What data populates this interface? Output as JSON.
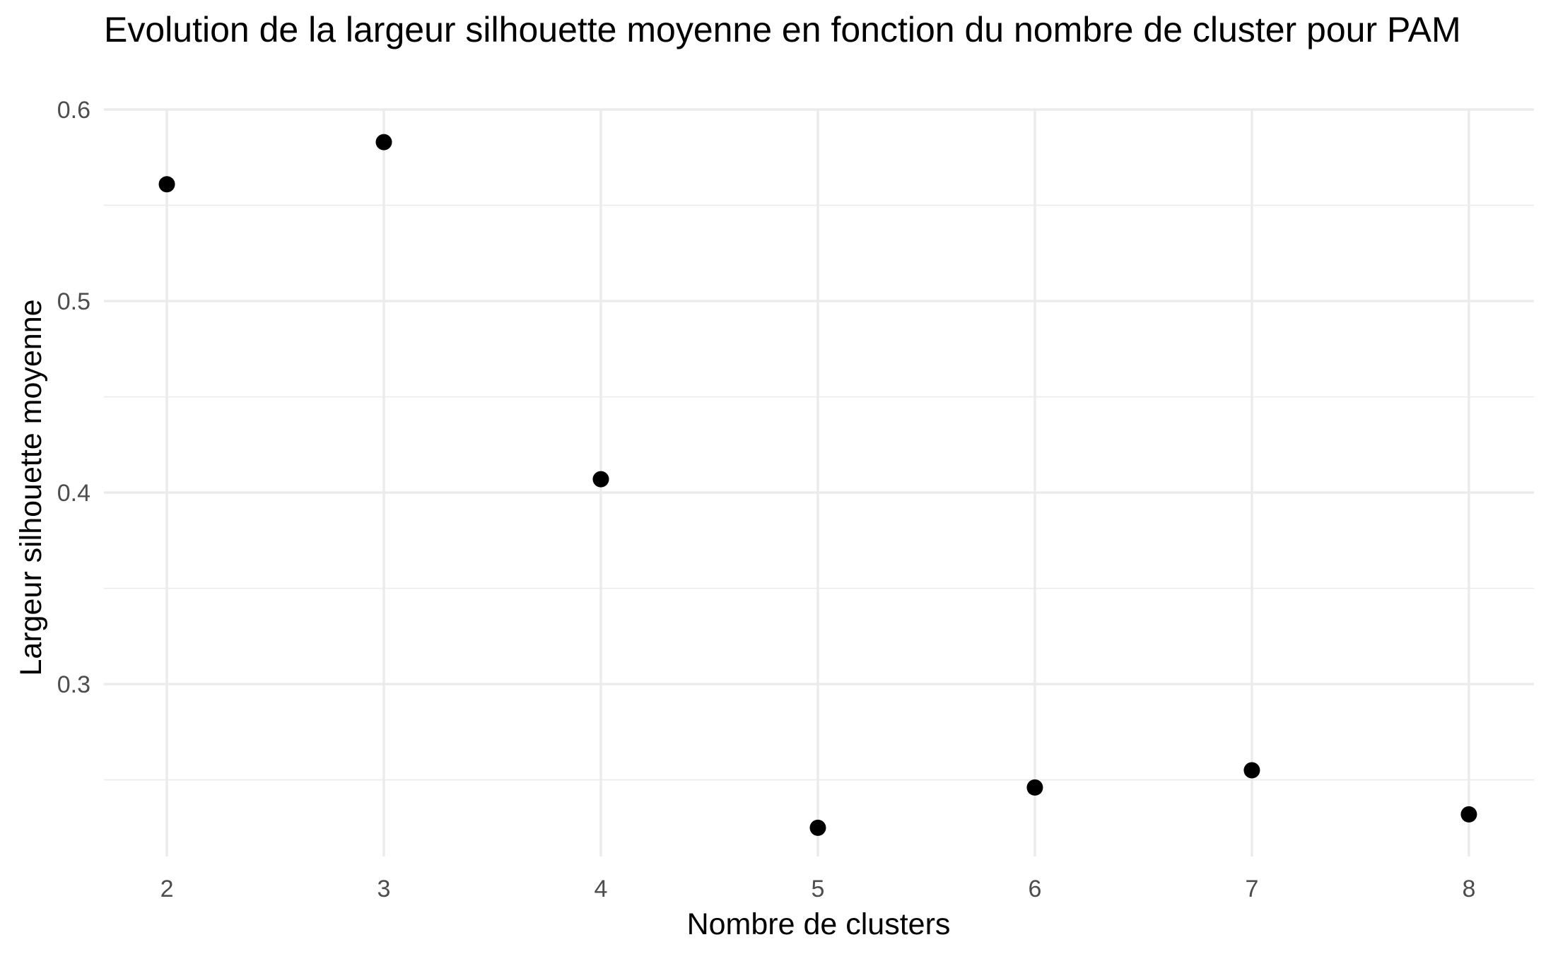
{
  "chart_data": {
    "type": "scatter",
    "title": "Evolution de la largeur silhouette moyenne en fonction du nombre de cluster pour PAM",
    "xlabel": "Nombre de clusters",
    "ylabel": "Largeur silhouette moyenne",
    "x": [
      2,
      3,
      4,
      5,
      6,
      7,
      8
    ],
    "y": [
      0.561,
      0.583,
      0.407,
      0.225,
      0.246,
      0.255,
      0.232
    ],
    "xticks": [
      "2",
      "3",
      "4",
      "5",
      "6",
      "7",
      "8"
    ],
    "yticks": [
      "0.3",
      "0.4",
      "0.5",
      "0.6"
    ],
    "xlim": [
      1.71,
      8.3
    ],
    "ylim": [
      0.21,
      0.6
    ],
    "grid": true,
    "point_color": "#000000",
    "grid_color": "#ebebeb"
  }
}
